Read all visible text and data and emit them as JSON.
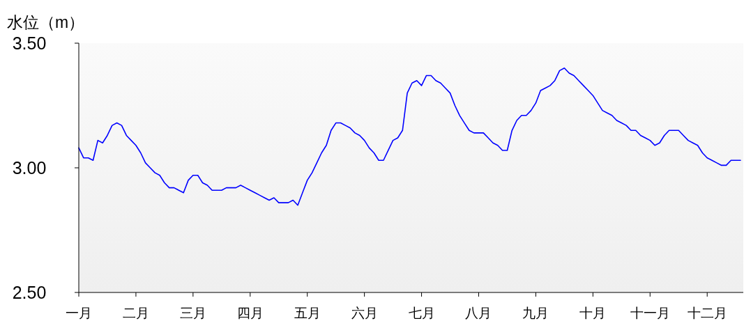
{
  "chart_data": {
    "type": "line",
    "ylabel": "水位（m）",
    "ylim": [
      2.5,
      3.5
    ],
    "yticks": [
      {
        "value": 2.5,
        "label": "2.50"
      },
      {
        "value": 3.0,
        "label": "3.00"
      },
      {
        "value": 3.5,
        "label": "3.50"
      }
    ],
    "categories": [
      "一月",
      null,
      null,
      null,
      null,
      null,
      null,
      null,
      null,
      null,
      null,
      null,
      "二月",
      null,
      null,
      null,
      null,
      null,
      null,
      null,
      null,
      null,
      null,
      null,
      "三月",
      null,
      null,
      null,
      null,
      null,
      null,
      null,
      null,
      null,
      null,
      null,
      "四月",
      null,
      null,
      null,
      null,
      null,
      null,
      null,
      null,
      null,
      null,
      null,
      "五月",
      null,
      null,
      null,
      null,
      null,
      null,
      null,
      null,
      null,
      null,
      null,
      "六月",
      null,
      null,
      null,
      null,
      null,
      null,
      null,
      null,
      null,
      null,
      null,
      "七月",
      null,
      null,
      null,
      null,
      null,
      null,
      null,
      null,
      null,
      null,
      null,
      "八月",
      null,
      null,
      null,
      null,
      null,
      null,
      null,
      null,
      null,
      null,
      null,
      "九月",
      null,
      null,
      null,
      null,
      null,
      null,
      null,
      null,
      null,
      null,
      null,
      "十月",
      null,
      null,
      null,
      null,
      null,
      null,
      null,
      null,
      null,
      null,
      null,
      "十一月",
      null,
      null,
      null,
      null,
      null,
      null,
      null,
      null,
      null,
      null,
      null,
      "十二月",
      null,
      null,
      null,
      null,
      null,
      null,
      null
    ],
    "series": [
      {
        "color": "#0000ff",
        "values": [
          3.08,
          3.04,
          3.04,
          3.03,
          3.11,
          3.1,
          3.13,
          3.17,
          3.18,
          3.17,
          3.13,
          3.11,
          3.09,
          3.06,
          3.02,
          3.0,
          2.98,
          2.97,
          2.94,
          2.92,
          2.92,
          2.91,
          2.9,
          2.95,
          2.97,
          2.97,
          2.94,
          2.93,
          2.91,
          2.91,
          2.91,
          2.92,
          2.92,
          2.92,
          2.93,
          2.92,
          2.91,
          2.9,
          2.89,
          2.88,
          2.87,
          2.88,
          2.86,
          2.86,
          2.86,
          2.87,
          2.85,
          2.9,
          2.95,
          2.98,
          3.02,
          3.06,
          3.09,
          3.15,
          3.18,
          3.18,
          3.17,
          3.16,
          3.14,
          3.13,
          3.11,
          3.08,
          3.06,
          3.03,
          3.03,
          3.07,
          3.11,
          3.12,
          3.15,
          3.3,
          3.34,
          3.35,
          3.33,
          3.37,
          3.37,
          3.35,
          3.34,
          3.32,
          3.3,
          3.25,
          3.21,
          3.18,
          3.15,
          3.14,
          3.14,
          3.14,
          3.12,
          3.1,
          3.09,
          3.07,
          3.07,
          3.15,
          3.19,
          3.21,
          3.21,
          3.23,
          3.26,
          3.31,
          3.32,
          3.33,
          3.35,
          3.39,
          3.4,
          3.38,
          3.37,
          3.35,
          3.33,
          3.31,
          3.29,
          3.26,
          3.23,
          3.22,
          3.21,
          3.19,
          3.18,
          3.17,
          3.15,
          3.15,
          3.13,
          3.12,
          3.11,
          3.09,
          3.1,
          3.13,
          3.15,
          3.15,
          3.15,
          3.13,
          3.11,
          3.1,
          3.09,
          3.06,
          3.04,
          3.03,
          3.02,
          3.01,
          3.01,
          3.03,
          3.03,
          3.03
        ]
      }
    ]
  }
}
